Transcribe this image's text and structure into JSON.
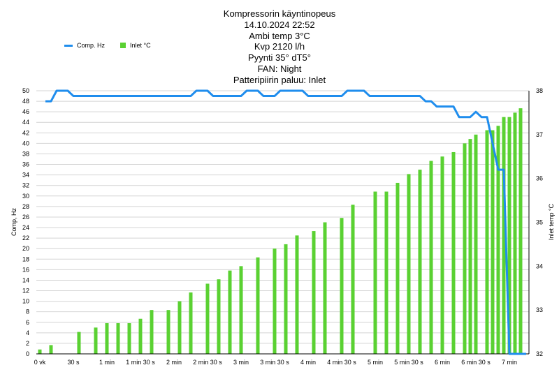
{
  "chart_data": {
    "type": "bar+line",
    "title_lines": [
      "Kompressorin käyntinopeus",
      "14.10.2024 22:52",
      "Ambi temp 3°C",
      "Kvp 2120 l/h",
      "Pyynti 35° dT5°",
      "FAN: Night",
      "Patteripiirin paluu: Inlet"
    ],
    "ylabel_left": "Comp, Hz",
    "ylabel_right": "Inlet temp °C",
    "ylim_left": [
      0,
      50
    ],
    "ylim_right": [
      32,
      38
    ],
    "yticks_left": [
      "0",
      "2",
      "4",
      "6",
      "8",
      "10",
      "12",
      "14",
      "16",
      "18",
      "20",
      "22",
      "24",
      "26",
      "28",
      "30",
      "32",
      "34",
      "36",
      "38",
      "40",
      "42",
      "44",
      "46",
      "48",
      "50"
    ],
    "yticks_right": [
      "32",
      "33",
      "34",
      "35",
      "36",
      "37",
      "38"
    ],
    "x_unit": "seconds",
    "xlim": [
      0,
      440
    ],
    "xticks": [
      {
        "t": 0,
        "label": "0 vk"
      },
      {
        "t": 30,
        "label": "30 s"
      },
      {
        "t": 60,
        "label": "1 min"
      },
      {
        "t": 90,
        "label": "1 min 30 s"
      },
      {
        "t": 120,
        "label": "2 min"
      },
      {
        "t": 150,
        "label": "2 min 30 s"
      },
      {
        "t": 180,
        "label": "3 min"
      },
      {
        "t": 210,
        "label": "3 min 30 s"
      },
      {
        "t": 240,
        "label": "4 min"
      },
      {
        "t": 270,
        "label": "4 min 30 s"
      },
      {
        "t": 300,
        "label": "5 min"
      },
      {
        "t": 330,
        "label": "5 min 30 s"
      },
      {
        "t": 360,
        "label": "6 min"
      },
      {
        "t": 390,
        "label": "6 min 30 s"
      },
      {
        "t": 420,
        "label": "7 min"
      }
    ],
    "grid": true,
    "legend_position": "top-left",
    "series": [
      {
        "name": "Comp. Hz",
        "type": "line",
        "axis": "left",
        "color": "#1f8ded",
        "points": [
          [
            5,
            48
          ],
          [
            10,
            48
          ],
          [
            15,
            50
          ],
          [
            25,
            50
          ],
          [
            30,
            49
          ],
          [
            135,
            49
          ],
          [
            140,
            50
          ],
          [
            150,
            50
          ],
          [
            155,
            49
          ],
          [
            180,
            49
          ],
          [
            185,
            50
          ],
          [
            195,
            50
          ],
          [
            200,
            49
          ],
          [
            210,
            49
          ],
          [
            215,
            50
          ],
          [
            235,
            50
          ],
          [
            240,
            49
          ],
          [
            270,
            49
          ],
          [
            275,
            50
          ],
          [
            290,
            50
          ],
          [
            295,
            49
          ],
          [
            340,
            49
          ],
          [
            345,
            48
          ],
          [
            350,
            48
          ],
          [
            355,
            47
          ],
          [
            370,
            47
          ],
          [
            375,
            45
          ],
          [
            385,
            45
          ],
          [
            390,
            46
          ],
          [
            395,
            45
          ],
          [
            400,
            45
          ],
          [
            410,
            35
          ],
          [
            415,
            35
          ],
          [
            420,
            0
          ],
          [
            435,
            0
          ]
        ]
      },
      {
        "name": "Inlet °C",
        "type": "bar",
        "axis": "right",
        "color": "#5ad132",
        "points": [
          [
            0,
            32.1
          ],
          [
            10,
            32.2
          ],
          [
            35,
            32.5
          ],
          [
            50,
            32.6
          ],
          [
            60,
            32.7
          ],
          [
            70,
            32.7
          ],
          [
            80,
            32.7
          ],
          [
            90,
            32.8
          ],
          [
            100,
            33.0
          ],
          [
            115,
            33.0
          ],
          [
            125,
            33.2
          ],
          [
            135,
            33.4
          ],
          [
            150,
            33.6
          ],
          [
            160,
            33.7
          ],
          [
            170,
            33.9
          ],
          [
            180,
            34.0
          ],
          [
            195,
            34.2
          ],
          [
            210,
            34.4
          ],
          [
            220,
            34.5
          ],
          [
            230,
            34.7
          ],
          [
            245,
            34.8
          ],
          [
            255,
            35.0
          ],
          [
            270,
            35.1
          ],
          [
            280,
            35.4
          ],
          [
            300,
            35.7
          ],
          [
            310,
            35.7
          ],
          [
            320,
            35.9
          ],
          [
            330,
            36.1
          ],
          [
            340,
            36.2
          ],
          [
            350,
            36.4
          ],
          [
            360,
            36.5
          ],
          [
            370,
            36.6
          ],
          [
            380,
            36.8
          ],
          [
            385,
            36.9
          ],
          [
            390,
            37.0
          ],
          [
            400,
            37.1
          ],
          [
            405,
            37.1
          ],
          [
            410,
            37.2
          ],
          [
            415,
            37.4
          ],
          [
            420,
            37.4
          ],
          [
            425,
            37.5
          ],
          [
            430,
            37.6
          ]
        ]
      }
    ]
  }
}
